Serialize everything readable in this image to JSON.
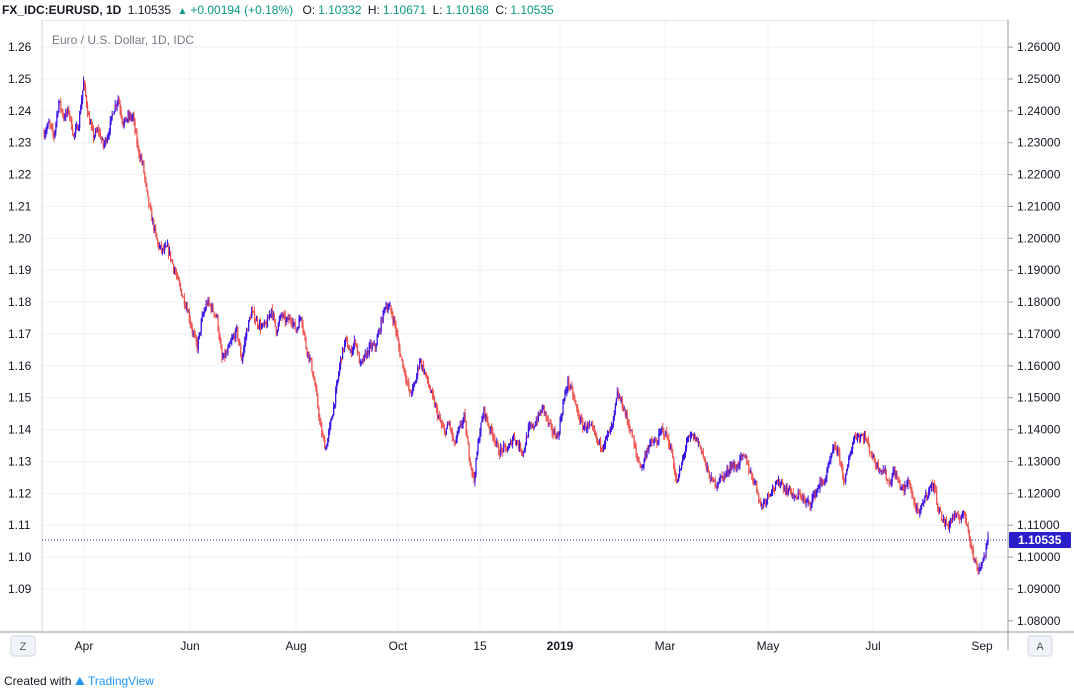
{
  "header": {
    "symbol": "FX_IDC:EURUSD, 1D",
    "last": "1.10535",
    "change": "+0.00194 (+0.18%)",
    "o_label": "O:",
    "o_value": "1.10332",
    "h_label": "H:",
    "h_value": "1.10671",
    "l_label": "L:",
    "l_value": "1.10168",
    "c_label": "C:",
    "c_value": "1.10535"
  },
  "chart_data": {
    "type": "candlestick",
    "title": "Euro / U.S. Dollar, 1D, IDC",
    "left_axis_ticks": [
      "1.26",
      "1.25",
      "1.24",
      "1.23",
      "1.22",
      "1.21",
      "1.20",
      "1.19",
      "1.18",
      "1.17",
      "1.16",
      "1.15",
      "1.14",
      "1.13",
      "1.12",
      "1.11",
      "1.10",
      "1.09"
    ],
    "right_axis_ticks": [
      "1.26000",
      "1.25000",
      "1.24000",
      "1.23000",
      "1.22000",
      "1.21000",
      "1.20000",
      "1.19000",
      "1.18000",
      "1.17000",
      "1.16000",
      "1.15000",
      "1.14000",
      "1.13000",
      "1.12000",
      "1.11000",
      "1.10000",
      "1.09000",
      "1.08000"
    ],
    "x_ticks": [
      "Apr",
      "Jun",
      "Aug",
      "Oct",
      "15",
      "2019",
      "Mar",
      "May",
      "Jul",
      "Sep"
    ],
    "price_label": "1.10535",
    "current_price": 1.10535,
    "ylim": [
      1.0765,
      1.2685
    ],
    "colors": {
      "up": "#3d14e6",
      "down": "#ef5350",
      "price_line": "#2a1ecc",
      "grid": "#eef1f5"
    },
    "path": [
      [
        0,
        1.233
      ],
      [
        5,
        1.236
      ],
      [
        10,
        1.232
      ],
      [
        15,
        1.243
      ],
      [
        20,
        1.238
      ],
      [
        25,
        1.24
      ],
      [
        30,
        1.232
      ],
      [
        35,
        1.236
      ],
      [
        40,
        1.249
      ],
      [
        45,
        1.238
      ],
      [
        50,
        1.232
      ],
      [
        55,
        1.234
      ],
      [
        60,
        1.229
      ],
      [
        65,
        1.233
      ],
      [
        70,
        1.24
      ],
      [
        75,
        1.244
      ],
      [
        80,
        1.236
      ],
      [
        85,
        1.238
      ],
      [
        90,
        1.238
      ],
      [
        95,
        1.228
      ],
      [
        100,
        1.223
      ],
      [
        105,
        1.212
      ],
      [
        110,
        1.205
      ],
      [
        115,
        1.198
      ],
      [
        120,
        1.196
      ],
      [
        125,
        1.197
      ],
      [
        130,
        1.192
      ],
      [
        135,
        1.187
      ],
      [
        140,
        1.182
      ],
      [
        145,
        1.178
      ],
      [
        150,
        1.171
      ],
      [
        155,
        1.166
      ],
      [
        160,
        1.175
      ],
      [
        165,
        1.18
      ],
      [
        170,
        1.178
      ],
      [
        175,
        1.175
      ],
      [
        180,
        1.162
      ],
      [
        185,
        1.164
      ],
      [
        190,
        1.168
      ],
      [
        195,
        1.171
      ],
      [
        200,
        1.162
      ],
      [
        205,
        1.171
      ],
      [
        210,
        1.177
      ],
      [
        215,
        1.174
      ],
      [
        220,
        1.172
      ],
      [
        225,
        1.173
      ],
      [
        230,
        1.178
      ],
      [
        235,
        1.171
      ],
      [
        240,
        1.176
      ],
      [
        245,
        1.174
      ],
      [
        250,
        1.175
      ],
      [
        255,
        1.171
      ],
      [
        260,
        1.176
      ],
      [
        265,
        1.166
      ],
      [
        270,
        1.161
      ],
      [
        275,
        1.152
      ],
      [
        280,
        1.14
      ],
      [
        285,
        1.134
      ],
      [
        290,
        1.142
      ],
      [
        295,
        1.151
      ],
      [
        300,
        1.162
      ],
      [
        305,
        1.168
      ],
      [
        310,
        1.164
      ],
      [
        315,
        1.168
      ],
      [
        320,
        1.16
      ],
      [
        325,
        1.163
      ],
      [
        330,
        1.166
      ],
      [
        335,
        1.166
      ],
      [
        340,
        1.172
      ],
      [
        345,
        1.179
      ],
      [
        350,
        1.178
      ],
      [
        355,
        1.173
      ],
      [
        360,
        1.164
      ],
      [
        365,
        1.158
      ],
      [
        370,
        1.151
      ],
      [
        375,
        1.154
      ],
      [
        380,
        1.162
      ],
      [
        385,
        1.158
      ],
      [
        390,
        1.153
      ],
      [
        395,
        1.148
      ],
      [
        400,
        1.143
      ],
      [
        405,
        1.139
      ],
      [
        410,
        1.142
      ],
      [
        415,
        1.135
      ],
      [
        420,
        1.14
      ],
      [
        425,
        1.144
      ],
      [
        430,
        1.132
      ],
      [
        435,
        1.124
      ],
      [
        440,
        1.138
      ],
      [
        445,
        1.146
      ],
      [
        450,
        1.141
      ],
      [
        455,
        1.138
      ],
      [
        460,
        1.133
      ],
      [
        465,
        1.134
      ],
      [
        470,
        1.134
      ],
      [
        475,
        1.138
      ],
      [
        480,
        1.135
      ],
      [
        485,
        1.133
      ],
      [
        490,
        1.14
      ],
      [
        495,
        1.141
      ],
      [
        500,
        1.144
      ],
      [
        505,
        1.147
      ],
      [
        510,
        1.142
      ],
      [
        515,
        1.139
      ],
      [
        520,
        1.138
      ],
      [
        525,
        1.148
      ],
      [
        530,
        1.155
      ],
      [
        535,
        1.151
      ],
      [
        540,
        1.145
      ],
      [
        545,
        1.141
      ],
      [
        550,
        1.141
      ],
      [
        555,
        1.14
      ],
      [
        560,
        1.136
      ],
      [
        565,
        1.135
      ],
      [
        570,
        1.138
      ],
      [
        575,
        1.141
      ],
      [
        580,
        1.151
      ],
      [
        585,
        1.148
      ],
      [
        590,
        1.143
      ],
      [
        595,
        1.138
      ],
      [
        600,
        1.131
      ],
      [
        605,
        1.128
      ],
      [
        610,
        1.134
      ],
      [
        615,
        1.136
      ],
      [
        620,
        1.136
      ],
      [
        625,
        1.14
      ],
      [
        630,
        1.138
      ],
      [
        635,
        1.133
      ],
      [
        640,
        1.123
      ],
      [
        645,
        1.129
      ],
      [
        650,
        1.136
      ],
      [
        655,
        1.138
      ],
      [
        660,
        1.137
      ],
      [
        665,
        1.134
      ],
      [
        670,
        1.128
      ],
      [
        675,
        1.124
      ],
      [
        680,
        1.123
      ],
      [
        685,
        1.125
      ],
      [
        690,
        1.126
      ],
      [
        695,
        1.129
      ],
      [
        700,
        1.128
      ],
      [
        705,
        1.131
      ],
      [
        710,
        1.131
      ],
      [
        715,
        1.126
      ],
      [
        720,
        1.123
      ],
      [
        725,
        1.116
      ],
      [
        730,
        1.118
      ],
      [
        735,
        1.121
      ],
      [
        740,
        1.122
      ],
      [
        745,
        1.124
      ],
      [
        750,
        1.121
      ],
      [
        755,
        1.121
      ],
      [
        760,
        1.118
      ],
      [
        765,
        1.12
      ],
      [
        770,
        1.117
      ],
      [
        775,
        1.117
      ],
      [
        780,
        1.12
      ],
      [
        785,
        1.123
      ],
      [
        790,
        1.124
      ],
      [
        795,
        1.13
      ],
      [
        800,
        1.135
      ],
      [
        805,
        1.131
      ],
      [
        810,
        1.123
      ],
      [
        815,
        1.132
      ],
      [
        820,
        1.138
      ],
      [
        825,
        1.138
      ],
      [
        830,
        1.138
      ],
      [
        835,
        1.134
      ],
      [
        840,
        1.13
      ],
      [
        845,
        1.128
      ],
      [
        850,
        1.127
      ],
      [
        855,
        1.123
      ],
      [
        860,
        1.127
      ],
      [
        865,
        1.123
      ],
      [
        870,
        1.121
      ],
      [
        875,
        1.124
      ],
      [
        880,
        1.117
      ],
      [
        885,
        1.113
      ],
      [
        890,
        1.118
      ],
      [
        895,
        1.121
      ],
      [
        900,
        1.123
      ],
      [
        905,
        1.115
      ],
      [
        910,
        1.111
      ],
      [
        915,
        1.11
      ],
      [
        920,
        1.113
      ],
      [
        925,
        1.112
      ],
      [
        930,
        1.114
      ],
      [
        935,
        1.109
      ],
      [
        940,
        1.1
      ],
      [
        945,
        1.096
      ],
      [
        950,
        1.099
      ],
      [
        955,
        1.10535
      ]
    ]
  },
  "footer": {
    "created_with": "Created with",
    "brand": "TradingView"
  },
  "controls": {
    "zoom_btn": "Z",
    "auto_btn": "A"
  }
}
